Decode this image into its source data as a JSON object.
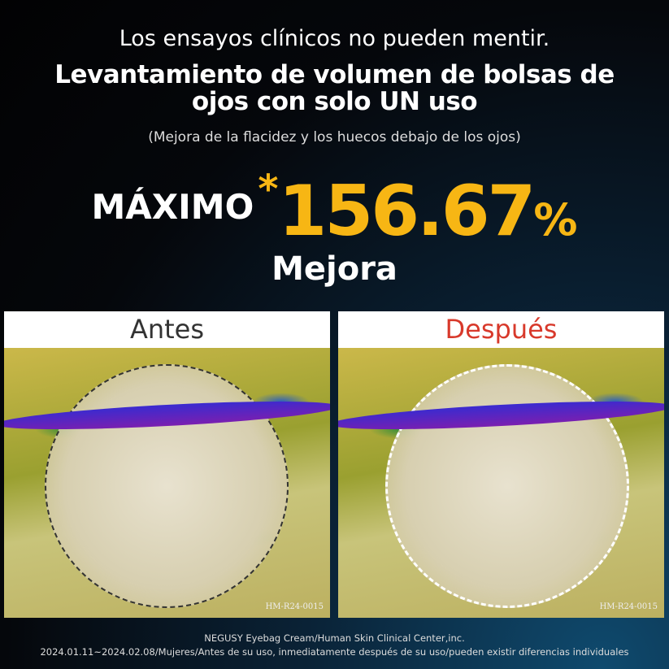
{
  "headline": {
    "line1": "Los ensayos clínicos no pueden mentir.",
    "line2": "Levantamiento de volumen de bolsas de ojos con solo UN uso",
    "subtitle": "(Mejora de la flacidez y los huecos debajo de los ojos)"
  },
  "stat": {
    "prefix": "MÁXIMO",
    "asterisk": "*",
    "value": "156.67",
    "unit": "%",
    "label": "Mejora"
  },
  "panels": [
    {
      "label": "Antes",
      "label_color": "#333333",
      "code": "HM-R24-0015"
    },
    {
      "label": "Después",
      "label_color": "#d8392b",
      "code": "HM-R24-0015"
    }
  ],
  "footer": {
    "line1": "NEGUSY Eyebag Cream/Human Skin Clinical Center,inc.",
    "line2": "2024.01.11~2024.02.08/Mujeres/Antes de su uso, inmediatamente después de su uso/pueden existir diferencias individuales"
  },
  "colors": {
    "accent": "#f7b614"
  }
}
